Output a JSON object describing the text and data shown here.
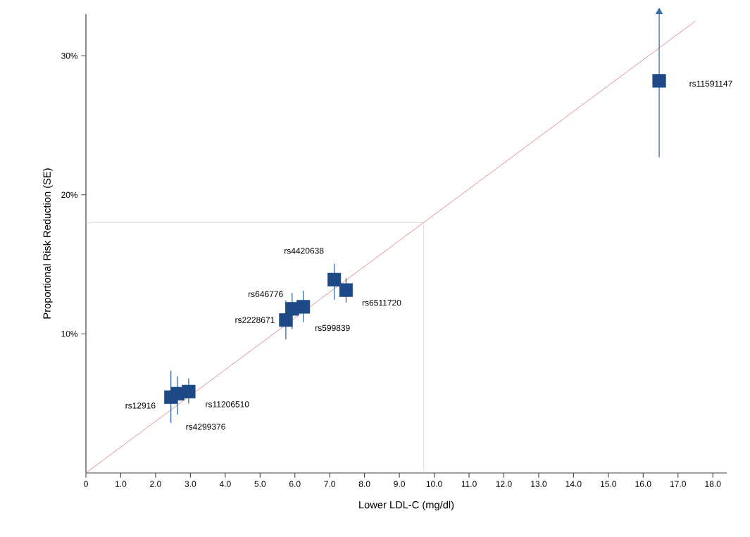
{
  "chart_data": {
    "type": "scatter",
    "xlabel": "Lower LDL-C (mg/dl)",
    "ylabel": "Proportional Risk Reduction (SE)",
    "xlim": [
      0,
      18.4
    ],
    "ylim": [
      0,
      33
    ],
    "xticks": [
      {
        "value": 0,
        "label": "0"
      },
      {
        "value": 1,
        "label": "1.0"
      },
      {
        "value": 2,
        "label": "2.0"
      },
      {
        "value": 3,
        "label": "3.0"
      },
      {
        "value": 4,
        "label": "4.0"
      },
      {
        "value": 5,
        "label": "5.0"
      },
      {
        "value": 6,
        "label": "6.0"
      },
      {
        "value": 7,
        "label": "7.0"
      },
      {
        "value": 8,
        "label": "8.0"
      },
      {
        "value": 9,
        "label": "9.0"
      },
      {
        "value": 10,
        "label": "10.0"
      },
      {
        "value": 11,
        "label": "11.0"
      },
      {
        "value": 12,
        "label": "12.0"
      },
      {
        "value": 13,
        "label": "13.0"
      },
      {
        "value": 14,
        "label": "14.0"
      },
      {
        "value": 15,
        "label": "15.0"
      },
      {
        "value": 16,
        "label": "16.0"
      },
      {
        "value": 17,
        "label": "17.0"
      },
      {
        "value": 18,
        "label": "18.0"
      }
    ],
    "yticks": [
      {
        "value": 10,
        "label": "10%"
      },
      {
        "value": 20,
        "label": "20%"
      },
      {
        "value": 30,
        "label": "30%"
      }
    ],
    "grid": false,
    "marker": "square",
    "series": [
      {
        "color": "#1d4a87",
        "x": [
          2.44,
          2.63,
          2.95,
          5.74,
          5.92,
          6.24,
          7.13,
          7.47,
          16.46
        ],
        "values": [
          5.45,
          5.7,
          5.85,
          11.0,
          11.8,
          11.95,
          13.9,
          13.15,
          28.2
        ],
        "errors": [
          [
            3.6,
            7.35
          ],
          [
            4.2,
            6.95
          ],
          [
            5.0,
            6.8
          ],
          [
            9.6,
            12.4
          ],
          [
            10.35,
            12.95
          ],
          [
            10.85,
            13.1
          ],
          [
            12.45,
            15.05
          ],
          [
            12.25,
            14.0
          ],
          [
            22.7,
            33
          ]
        ]
      },
      {
        "type": "line",
        "color": "#e08a8a",
        "x": [
          0,
          17.5
        ],
        "values": [
          0,
          32.5
        ],
        "marker": "none"
      }
    ],
    "ref_lines": [
      {
        "axis": "x",
        "value": 9.7,
        "color": "#d0d0d0"
      },
      {
        "axis": "y",
        "value": 18.0,
        "color": "#d0d0d0"
      }
    ],
    "annotations": [
      "rs12916",
      "rs4299376",
      "rs11206510",
      "rs2228671",
      "rs646776",
      "rs599839",
      "rs4420638",
      "rs6511720",
      "rs11591147"
    ]
  }
}
